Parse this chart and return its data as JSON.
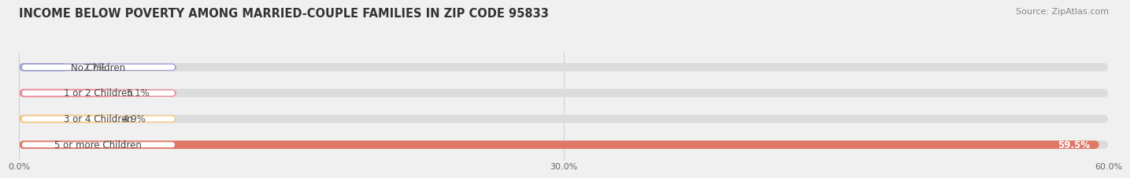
{
  "title": "INCOME BELOW POVERTY AMONG MARRIED-COUPLE FAMILIES IN ZIP CODE 95833",
  "source": "Source: ZipAtlas.com",
  "categories": [
    "No Children",
    "1 or 2 Children",
    "3 or 4 Children",
    "5 or more Children"
  ],
  "values": [
    2.7,
    5.1,
    4.9,
    59.5
  ],
  "bar_colors": [
    "#a0a0d0",
    "#f08898",
    "#f5c880",
    "#e07868"
  ],
  "bg_color": "#f0f0f0",
  "bar_bg_color": "#dcdcdc",
  "xlim": [
    0,
    60
  ],
  "xtick_labels": [
    "0.0%",
    "30.0%",
    "60.0%"
  ],
  "bar_height": 0.32,
  "title_fontsize": 10.5,
  "label_fontsize": 8.5,
  "value_fontsize": 8.5,
  "source_fontsize": 8
}
